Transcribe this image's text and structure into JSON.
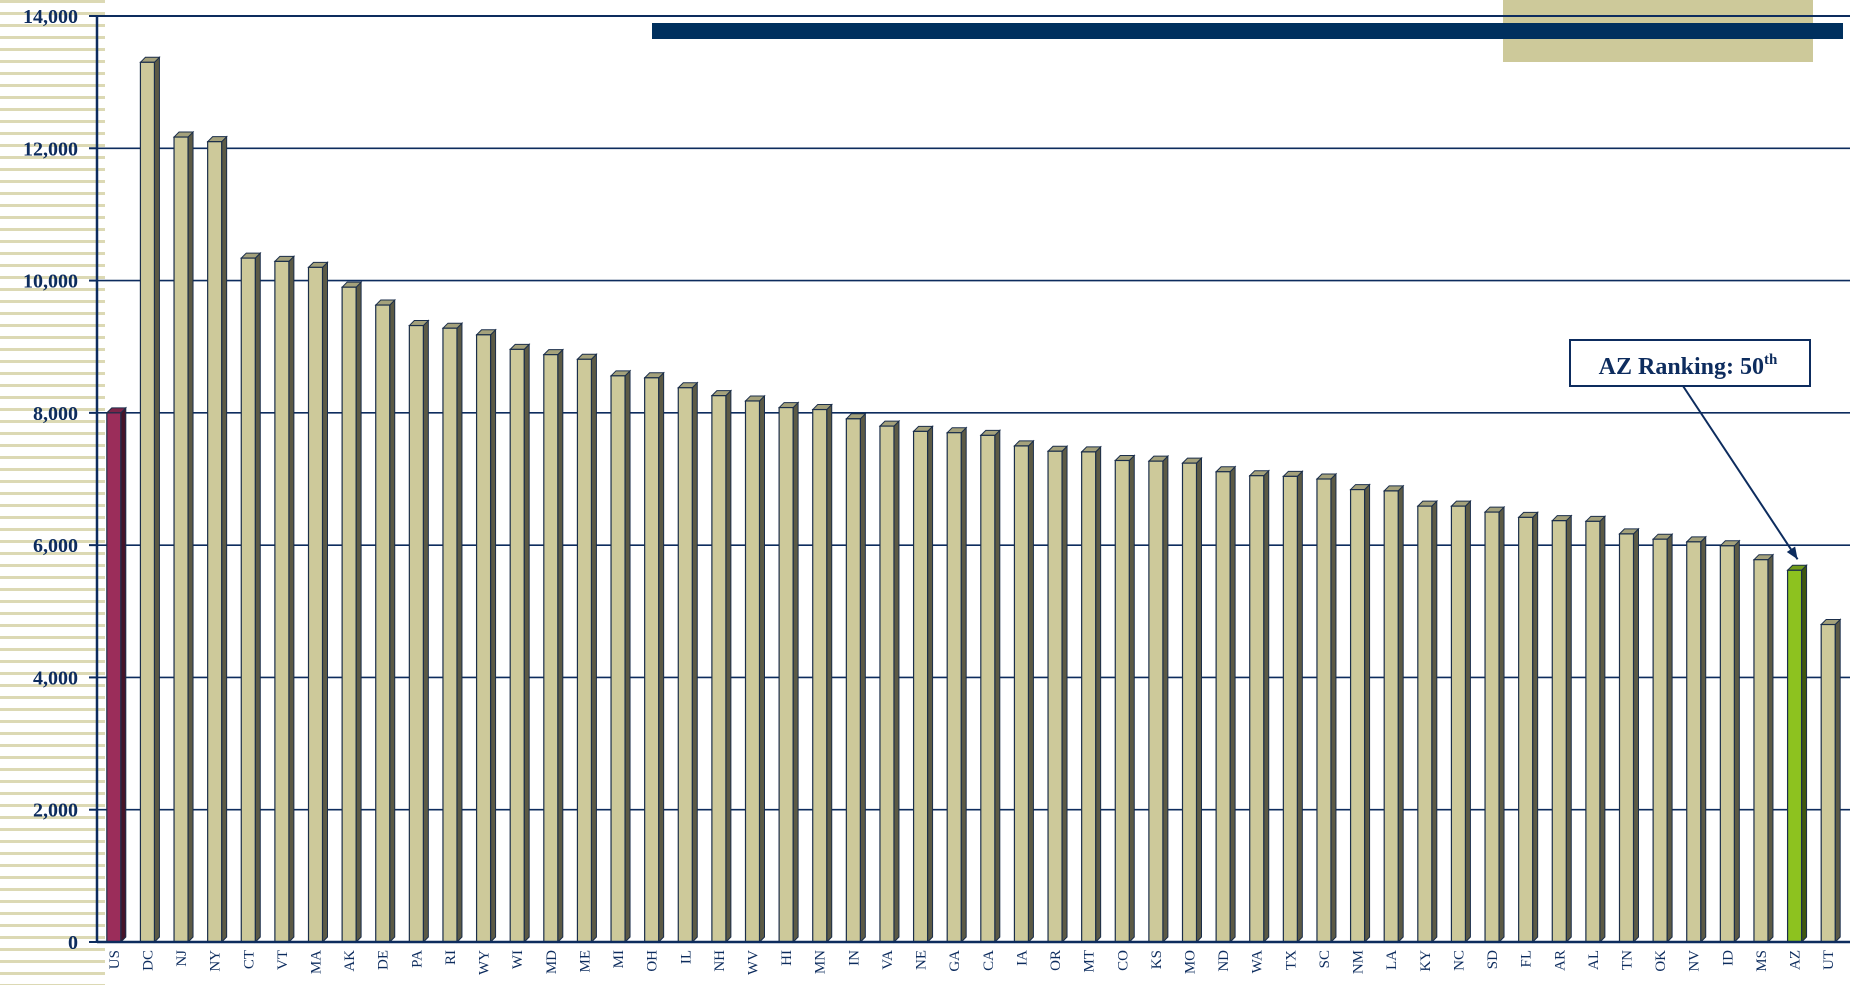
{
  "chart_data": {
    "type": "bar",
    "title": "",
    "xlabel": "",
    "ylabel": "",
    "ylim": [
      0,
      14000
    ],
    "yticks": [
      0,
      2000,
      4000,
      6000,
      8000,
      10000,
      12000,
      14000
    ],
    "ytick_labels": [
      "0",
      "2,000",
      "4,000",
      "6,000",
      "8,000",
      "10,000",
      "12,000",
      "14,000"
    ],
    "grid": true,
    "legend": "none",
    "categories": [
      "US",
      "DC",
      "NJ",
      "NY",
      "CT",
      "VT",
      "MA",
      "AK",
      "DE",
      "PA",
      "RI",
      "WY",
      "WI",
      "MD",
      "ME",
      "MI",
      "OH",
      "IL",
      "NH",
      "WV",
      "HI",
      "MN",
      "IN",
      "VA",
      "NE",
      "GA",
      "CA",
      "IA",
      "OR",
      "MT",
      "CO",
      "KS",
      "MO",
      "ND",
      "WA",
      "TX",
      "SC",
      "NM",
      "LA",
      "KY",
      "NC",
      "SD",
      "FL",
      "AR",
      "AL",
      "TN",
      "OK",
      "NV",
      "ID",
      "MS",
      "AZ",
      "UT"
    ],
    "values": [
      8000,
      13300,
      12170,
      12100,
      10340,
      10290,
      10200,
      9900,
      9630,
      9320,
      9280,
      9180,
      8960,
      8880,
      8810,
      8560,
      8530,
      8380,
      8260,
      8180,
      8080,
      8050,
      7910,
      7800,
      7720,
      7700,
      7660,
      7500,
      7420,
      7410,
      7280,
      7270,
      7240,
      7110,
      7050,
      7040,
      7000,
      6840,
      6820,
      6590,
      6590,
      6500,
      6420,
      6370,
      6360,
      6170,
      6090,
      6050,
      5990,
      5780,
      5620,
      4800
    ],
    "colors": {
      "default": "#cdc99a",
      "us": "#9b2d5a",
      "az": "#8dc21f",
      "grid": "#0d2c5e",
      "axis": "#0d2c5e",
      "banner": "#00305e",
      "banner_block": "#cdc99a"
    },
    "highlight": {
      "US": "us",
      "AZ": "az"
    },
    "annotation": {
      "text": "AZ Ranking: 50",
      "superscript": "th",
      "target": "AZ"
    }
  }
}
